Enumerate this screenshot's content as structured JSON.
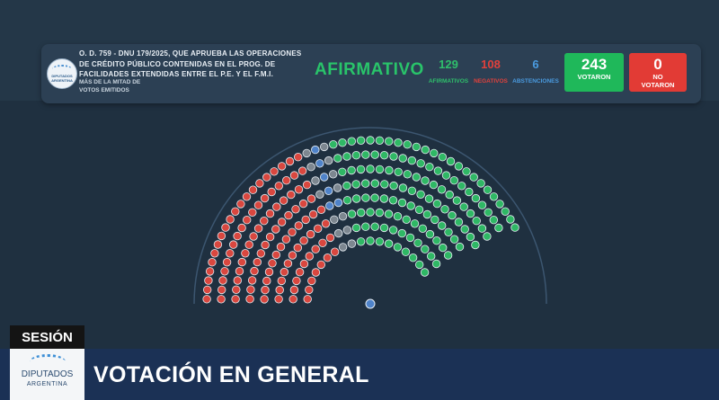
{
  "header": {
    "logo_text": [
      "DIPUTADOS",
      "ARGENTINA"
    ],
    "title": "O. D. 759 - DNU 179/2025, QUE APRUEBA LAS OPERACIONES DE CRÉDITO PÚBLICO CONTENIDAS EN EL PROG. DE FACILIDADES EXTENDIDAS ENTRE EL P.E. Y EL F.M.I.",
    "majority_line1": "MÁS DE LA MITAD DE",
    "majority_line2": "VOTOS EMITIDOS",
    "result": "AFIRMATIVO",
    "afirmativos": {
      "value": "129",
      "label": "AFIRMATIVOS",
      "color": "#2fbf6b"
    },
    "negativos": {
      "value": "108",
      "label": "NEGATIVOS",
      "color": "#e0413c"
    },
    "abstenciones": {
      "value": "6",
      "label": "ABSTENCIONES",
      "color": "#4a9be0"
    },
    "votaron": {
      "value": "243",
      "label": "VOTARON",
      "color": "#1fb85a"
    },
    "no_votaron": {
      "value": "0",
      "label1": "NO",
      "label2": "VOTARON",
      "color": "#e23b35"
    }
  },
  "hemicycle": {
    "seats": {
      "negativo": 108,
      "afirmativo": 129,
      "abstencion": 6,
      "ausente": 14
    },
    "colors": {
      "negativo": "#d9473f",
      "afirmativo": "#2fb865",
      "abstencion": "#4f83c9",
      "ausente": "#7d8790",
      "presidente": "#4f83c9"
    }
  },
  "footer": {
    "session_label": "SESIÓN",
    "logo_line1": "DIPUTADOS",
    "logo_line2": "ARGENTINA",
    "vote_type": "VOTACIÓN EN GENERAL"
  }
}
